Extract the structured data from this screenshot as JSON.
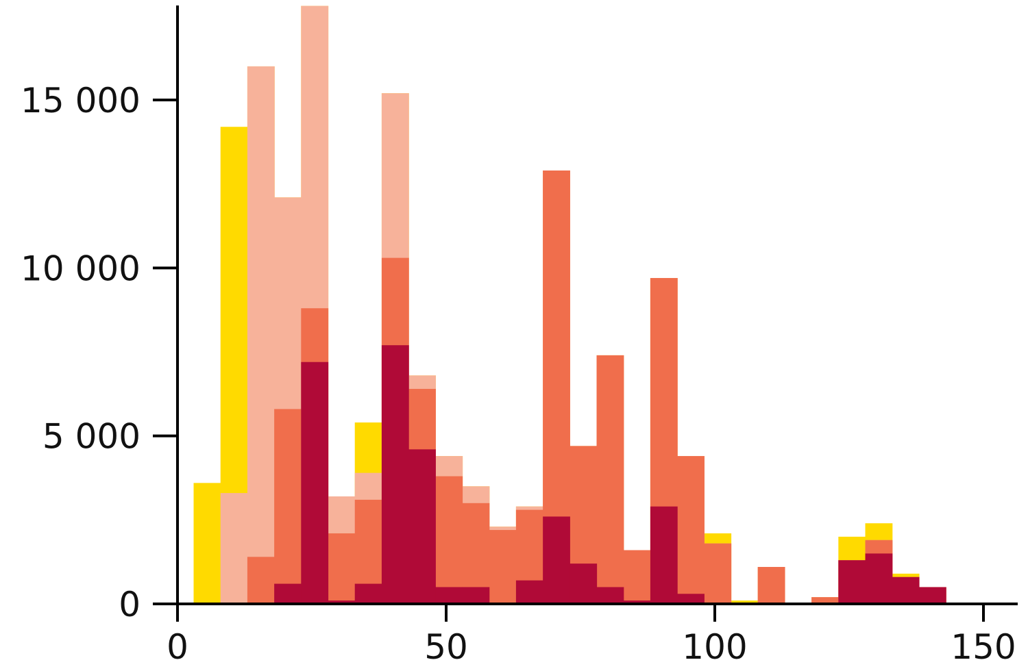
{
  "chart_data": {
    "type": "bar",
    "subtype": "overlaid-histogram",
    "title": "",
    "xlabel": "",
    "ylabel": "",
    "xlim": [
      0,
      155
    ],
    "ylim": [
      0,
      17800
    ],
    "grid": false,
    "legend": "none",
    "bin_edges": [
      3,
      8,
      13,
      18,
      23,
      28,
      33,
      38,
      43,
      48,
      53,
      58,
      63,
      68,
      73,
      78,
      83,
      88,
      93,
      98,
      103,
      108,
      113,
      118,
      123,
      128,
      133,
      138,
      143
    ],
    "x_ticks": [
      {
        "value": 0,
        "label": "0"
      },
      {
        "value": 50,
        "label": "50"
      },
      {
        "value": 100,
        "label": "100"
      },
      {
        "value": 150,
        "label": "150"
      }
    ],
    "y_ticks": [
      {
        "value": 0,
        "label": "0"
      },
      {
        "value": 5000,
        "label": "5 000"
      },
      {
        "value": 10000,
        "label": "10 000"
      },
      {
        "value": 15000,
        "label": "15 000"
      }
    ],
    "series": [
      {
        "color": "#FFDA00",
        "values": [
          3600,
          14200,
          16000,
          12100,
          17800,
          3200,
          5400,
          15200,
          6800,
          4400,
          3500,
          2300,
          2900,
          12900,
          4700,
          7400,
          1600,
          9700,
          4400,
          2100,
          100,
          1100,
          0,
          200,
          2000,
          2400,
          900,
          500
        ]
      },
      {
        "color": "#F7B29A",
        "values": [
          0,
          3300,
          16000,
          12100,
          17800,
          3200,
          3900,
          15200,
          6800,
          4400,
          3500,
          2300,
          2900,
          12900,
          4700,
          7400,
          1600,
          9700,
          4400,
          1800,
          0,
          1100,
          0,
          200,
          1300,
          1900,
          800,
          500
        ]
      },
      {
        "color": "#F06E4C",
        "values": [
          0,
          0,
          1400,
          5800,
          8800,
          2100,
          3100,
          10300,
          6400,
          3800,
          3000,
          2200,
          2800,
          12900,
          4700,
          7400,
          1600,
          9700,
          4400,
          1800,
          0,
          1100,
          0,
          200,
          1300,
          1900,
          800,
          500
        ]
      },
      {
        "color": "#B00A37",
        "values": [
          0,
          0,
          0,
          600,
          7200,
          100,
          600,
          7700,
          4600,
          500,
          500,
          0,
          700,
          2600,
          1200,
          500,
          100,
          2900,
          300,
          0,
          0,
          0,
          0,
          0,
          1300,
          1500,
          800,
          500
        ]
      }
    ]
  }
}
